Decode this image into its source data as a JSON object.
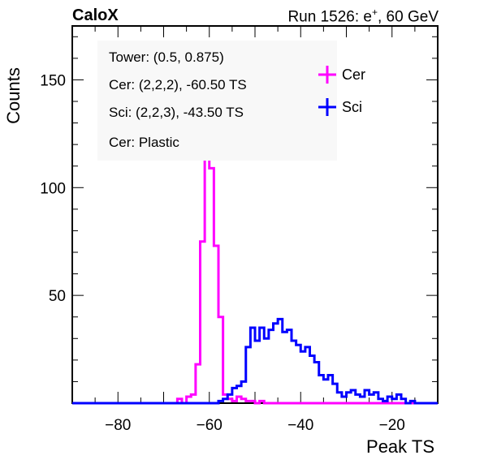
{
  "header": {
    "experiment": "CaloX",
    "run_prefix": "Run 1526: e",
    "run_sup": "+",
    "run_suffix": ", 60 GeV"
  },
  "chart_data": {
    "type": "histogram",
    "xlabel": "Peak TS",
    "ylabel": "Counts",
    "xlim": [
      -90,
      -10
    ],
    "ylim": [
      0,
      175
    ],
    "x_ticks": [
      -80,
      -60,
      -40,
      -20
    ],
    "y_ticks": [
      50,
      100,
      150
    ],
    "bin_width": 1,
    "info": [
      "Tower: (0.5, 0.875)",
      "Cer: (2,2,2), -60.50 TS",
      "Sci: (2,2,3), -43.50 TS",
      "Cer: Plastic"
    ],
    "series": [
      {
        "name": "Cer",
        "color": "#ff00ff",
        "bin_start": -90,
        "values": [
          0,
          0,
          0,
          0,
          0,
          0,
          0,
          0,
          0,
          0,
          0,
          0,
          0,
          0,
          0,
          0,
          0,
          0,
          0,
          0,
          0,
          0,
          0,
          2,
          0,
          3,
          4,
          18,
          75,
          117,
          109,
          73,
          40,
          4,
          2,
          1,
          3,
          2,
          1,
          1,
          0,
          1,
          0,
          0,
          0,
          0,
          0,
          0,
          0,
          0,
          0,
          0,
          0,
          0,
          0,
          0,
          0,
          0,
          0,
          0,
          0,
          0,
          0,
          0,
          0,
          0,
          0,
          0,
          0,
          0,
          0,
          0,
          0,
          0,
          0,
          0,
          0,
          0,
          0,
          0
        ]
      },
      {
        "name": "Sci",
        "color": "#0000ff",
        "bin_start": -90,
        "values": [
          0,
          0,
          0,
          0,
          0,
          0,
          0,
          0,
          0,
          0,
          0,
          0,
          0,
          0,
          0,
          0,
          0,
          0,
          0,
          0,
          0,
          0,
          0,
          0,
          0,
          0,
          0,
          0,
          0,
          0,
          0,
          0,
          1,
          2,
          4,
          7,
          8,
          10,
          26,
          35,
          29,
          35,
          30,
          34,
          37,
          39,
          33,
          34,
          29,
          27,
          24,
          26,
          22,
          19,
          13,
          11,
          13,
          9,
          5,
          3,
          5,
          6,
          4,
          3,
          6,
          4,
          5,
          2,
          1,
          3,
          2,
          4,
          2,
          0,
          1,
          0,
          0,
          0,
          0,
          0
        ]
      }
    ]
  }
}
